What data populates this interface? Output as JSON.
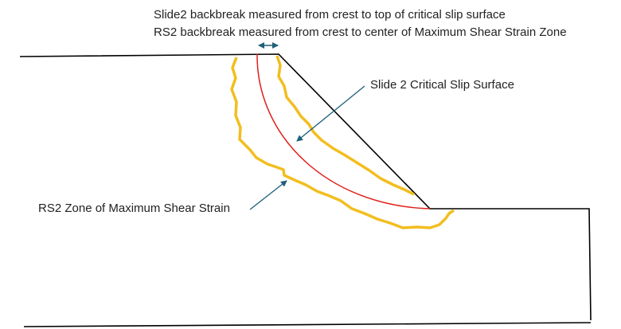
{
  "header": {
    "line1": "Slide2 backbreak measured from crest to top of critical slip surface",
    "line2": "RS2 backbreak measured from crest to center of Maximum Shear Strain Zone"
  },
  "labels": {
    "slip_surface": "Slide 2 Critical Slip Surface",
    "shear_zone": "RS2 Zone of Maximum Shear Strain"
  }
}
